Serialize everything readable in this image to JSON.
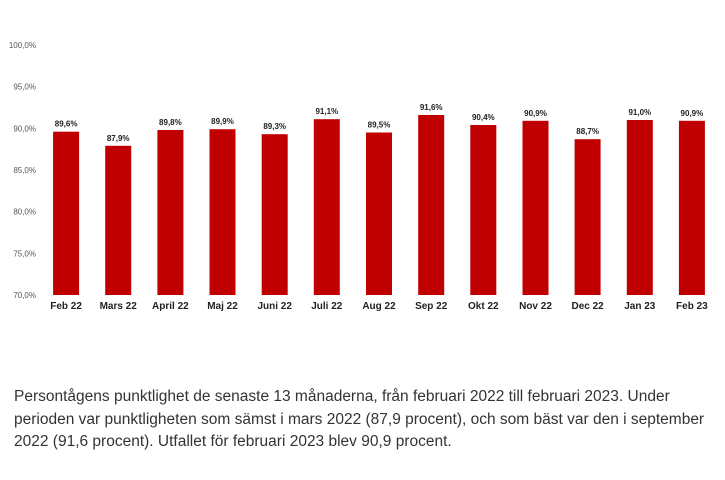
{
  "chart_data": {
    "type": "bar",
    "categories": [
      "Feb 22",
      "Mars 22",
      "April 22",
      "Maj 22",
      "Juni 22",
      "Juli 22",
      "Aug 22",
      "Sep 22",
      "Okt 22",
      "Nov 22",
      "Dec 22",
      "Jan 23",
      "Feb 23"
    ],
    "values": [
      89.6,
      87.9,
      89.8,
      89.9,
      89.3,
      91.1,
      89.5,
      91.6,
      90.4,
      90.9,
      88.7,
      91.0,
      90.9
    ],
    "data_labels": [
      "89,6%",
      "87,9%",
      "89,8%",
      "89,9%",
      "89,3%",
      "91,1%",
      "89,5%",
      "91,6%",
      "90,4%",
      "90,9%",
      "88,7%",
      "91,0%",
      "90,9%"
    ],
    "y_ticks": [
      70,
      75,
      80,
      85,
      90,
      95,
      100
    ],
    "y_tick_labels": [
      "70,0%",
      "75,0%",
      "80,0%",
      "85,0%",
      "90,0%",
      "95,0%",
      "100,0%"
    ],
    "ylim": [
      70,
      100
    ],
    "grid": false,
    "bar_color": "#c00000",
    "title": "",
    "xlabel": "",
    "ylabel": ""
  },
  "caption": "Persontågens punktlighet de senaste 13 månaderna, från februari 2022 till februari 2023. Under perioden var punktligheten som sämst i mars 2022 (87,9 procent), och som bäst var den i september 2022 (91,6 procent). Utfallet för februari 2023 blev 90,9 procent."
}
